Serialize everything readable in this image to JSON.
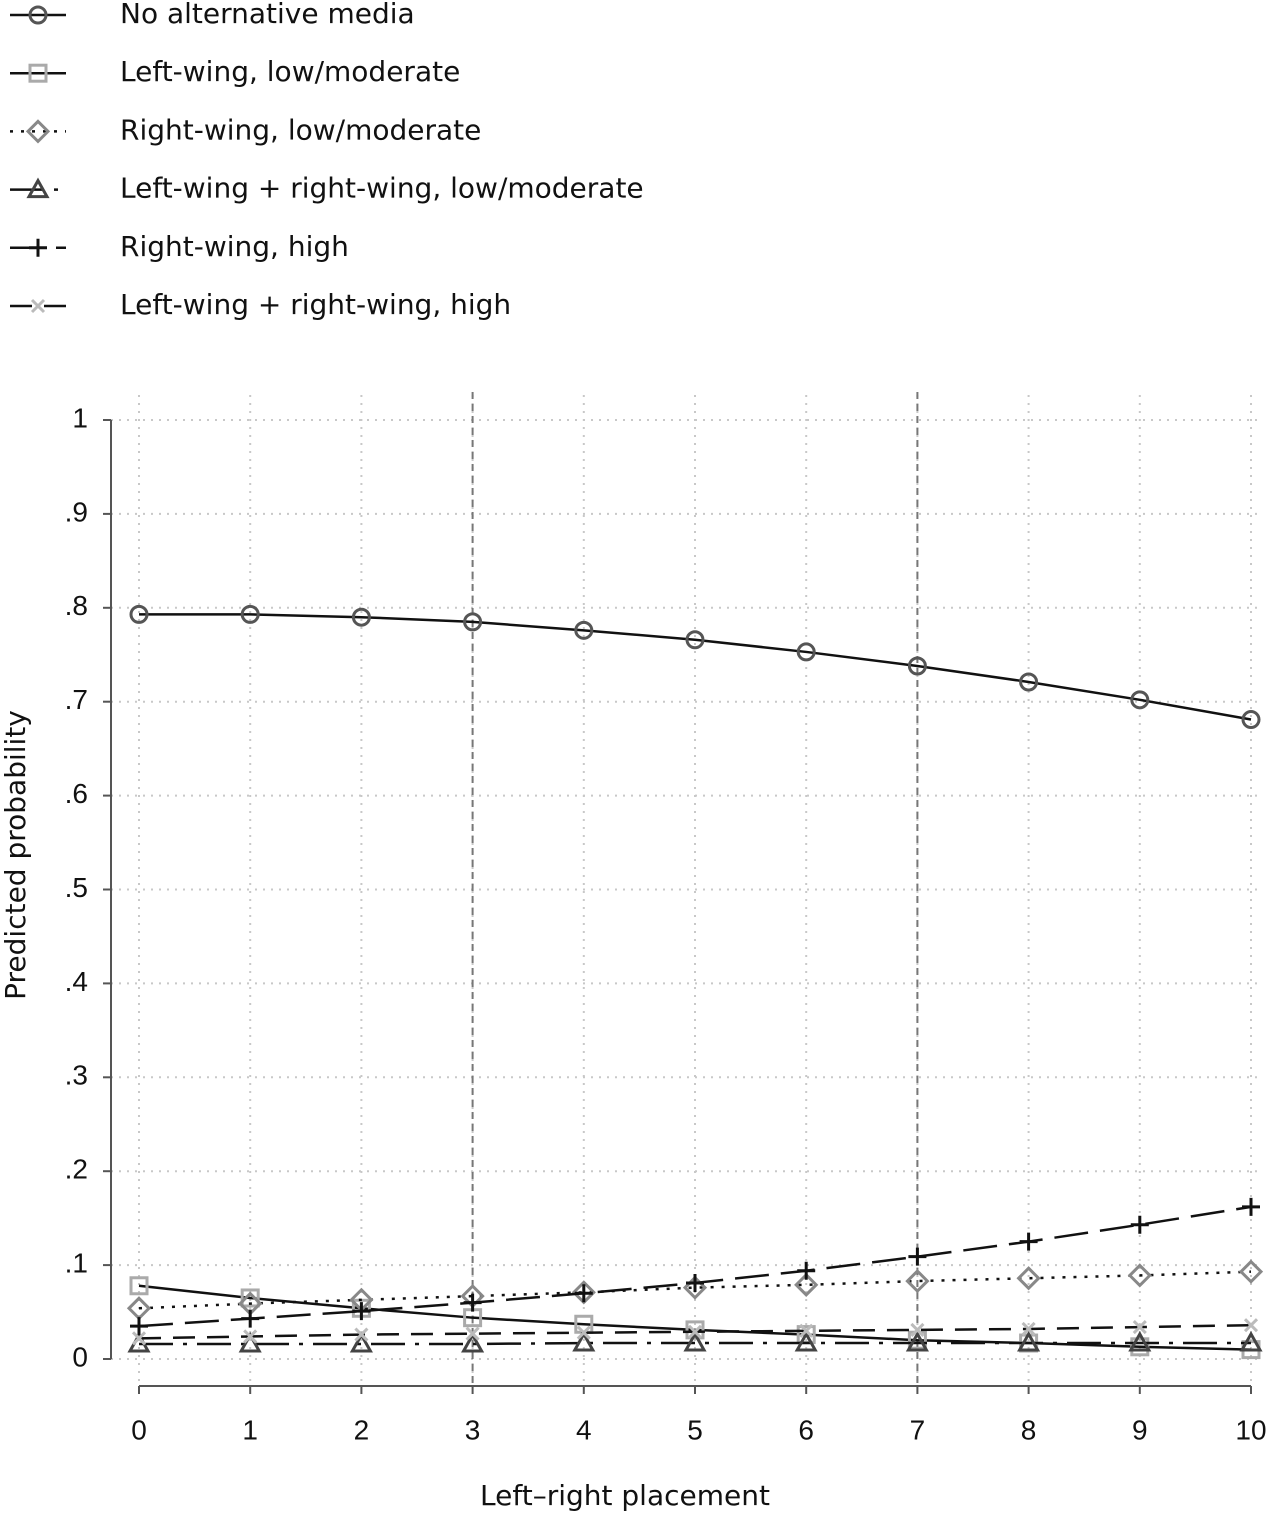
{
  "chart_data": {
    "type": "line",
    "x_label": "Left–right placement",
    "y_label": "Predicted probability",
    "x": [
      0,
      1,
      2,
      3,
      4,
      5,
      6,
      7,
      8,
      9,
      10
    ],
    "xlim": [
      0,
      10
    ],
    "xticks": [
      0,
      1,
      2,
      3,
      4,
      5,
      6,
      7,
      8,
      9,
      10
    ],
    "ylim": [
      0,
      1
    ],
    "yticks": [
      0,
      {
        "value": 0.1,
        "label": ".1"
      },
      {
        "value": 0.2,
        "label": ".2"
      },
      {
        "value": 0.3,
        "label": ".3"
      },
      {
        "value": 0.4,
        "label": ".4"
      },
      {
        "value": 0.5,
        "label": ".5"
      },
      {
        "value": 0.6,
        "label": ".6"
      },
      {
        "value": 0.7,
        "label": ".7"
      },
      {
        "value": 0.8,
        "label": ".8"
      },
      {
        "value": 0.9,
        "label": ".9"
      },
      1
    ],
    "grid": true,
    "reference_lines": [
      3,
      7
    ],
    "legend": "top",
    "series": [
      {
        "name": "No alternative media",
        "color": "#111111",
        "marker": "circle",
        "marker_color": "#555555",
        "line_style": "solid",
        "values": [
          0.793,
          0.793,
          0.79,
          0.785,
          0.776,
          0.766,
          0.753,
          0.738,
          0.721,
          0.702,
          0.681
        ]
      },
      {
        "name": "Left-wing, low/moderate",
        "color": "#111111",
        "marker": "square",
        "marker_color": "#aaaaaa",
        "line_style": "solid",
        "values": [
          0.078,
          0.065,
          0.054,
          0.044,
          0.037,
          0.031,
          0.026,
          0.02,
          0.017,
          0.013,
          0.01
        ]
      },
      {
        "name": "Right-wing, low/moderate",
        "color": "#111111",
        "marker": "diamond",
        "marker_color": "#888888",
        "line_style": "dotted",
        "values": [
          0.054,
          0.059,
          0.063,
          0.067,
          0.071,
          0.076,
          0.079,
          0.083,
          0.086,
          0.089,
          0.093
        ]
      },
      {
        "name": "Left-wing + right-wing, low/moderate",
        "color": "#111111",
        "marker": "triangle",
        "marker_color": "#444444",
        "line_style": "dashdot",
        "values": [
          0.016,
          0.016,
          0.016,
          0.016,
          0.017,
          0.017,
          0.017,
          0.017,
          0.017,
          0.017,
          0.017
        ]
      },
      {
        "name": "Right-wing, high",
        "color": "#111111",
        "marker": "plus",
        "marker_color": "#111111",
        "line_style": "longdash",
        "values": [
          0.035,
          0.043,
          0.051,
          0.06,
          0.07,
          0.081,
          0.094,
          0.109,
          0.125,
          0.143,
          0.162
        ]
      },
      {
        "name": "Left-wing + right-wing, high",
        "color": "#111111",
        "marker": "cross",
        "marker_color": "#bbbbbb",
        "line_style": "dashed",
        "values": [
          0.022,
          0.024,
          0.026,
          0.027,
          0.028,
          0.029,
          0.03,
          0.031,
          0.032,
          0.034,
          0.036
        ]
      }
    ]
  }
}
